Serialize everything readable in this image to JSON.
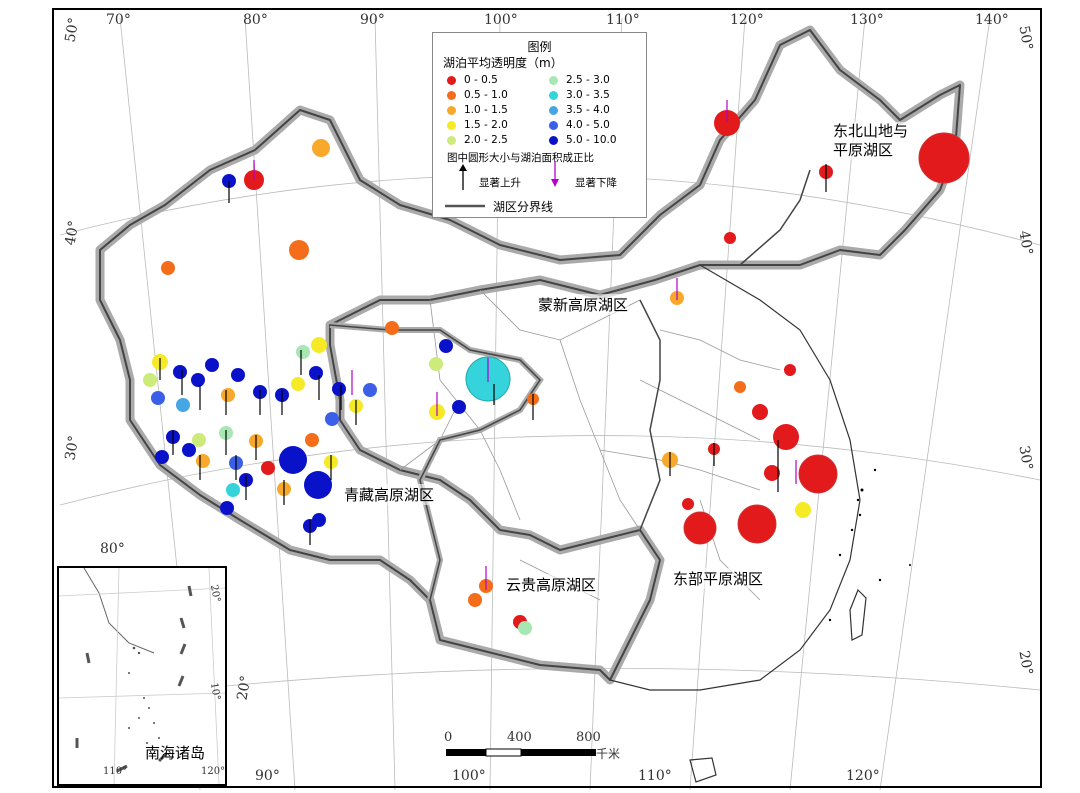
{
  "map": {
    "graticule_labels": {
      "top": [
        "70°",
        "80°",
        "90°",
        "100°",
        "110°",
        "120°",
        "130°",
        "140°"
      ],
      "bottom": [
        "90°",
        "100°",
        "110°",
        "120°"
      ],
      "left": [
        "50°",
        "40°",
        "30°",
        "20°",
        "80°"
      ],
      "right": [
        "50°",
        "40°",
        "30°",
        "20°"
      ]
    },
    "regions": {
      "northeast": "东北山地与\n平原湖区",
      "mengxin": "蒙新高原湖区",
      "qingzang": "青藏高原湖区",
      "yungui": "云贵高原湖区",
      "east": "东部平原湖区"
    },
    "inset_label": "南海诸岛",
    "inset_ticks": {
      "bottom": [
        "110°",
        "120°"
      ],
      "right": [
        "20°",
        "10°"
      ]
    },
    "scale": {
      "labels": [
        "0",
        "400",
        "800"
      ],
      "unit": "千米"
    }
  },
  "legend": {
    "title": "图例",
    "subtitle": "湖泊平均透明度（m）",
    "classes": [
      {
        "label": "0 - 0.5",
        "color": "#e31a1c"
      },
      {
        "label": "0.5 - 1.0",
        "color": "#f46d1b"
      },
      {
        "label": "1.0 - 1.5",
        "color": "#f8a82b"
      },
      {
        "label": "1.5 - 2.0",
        "color": "#f6ea26"
      },
      {
        "label": "2.0 - 2.5",
        "color": "#cdeb7a"
      },
      {
        "label": "2.5 - 3.0",
        "color": "#a7e7b3"
      },
      {
        "label": "3.0 - 3.5",
        "color": "#35d4dc"
      },
      {
        "label": "3.5 - 4.0",
        "color": "#46a6e4"
      },
      {
        "label": "4.0 - 5.0",
        "color": "#3b5fe6"
      },
      {
        "label": "5.0 - 10.0",
        "color": "#0a12c9"
      }
    ],
    "note": "图中圆形大小与湖泊面积成正比",
    "rise": "显著上升",
    "fall": "显著下降",
    "boundary": "湖区分界线",
    "colors": {
      "rise": "#000000",
      "fall": "#b400c8",
      "boundary": "#555555"
    }
  },
  "lakes": [
    {
      "c": 0,
      "r": 1,
      "t": null
    },
    {
      "c": 0,
      "r": 1,
      "t": "down"
    },
    {
      "c": 0,
      "r": 3,
      "t": null
    },
    {
      "c": 0,
      "r": 2,
      "t": "up"
    },
    {
      "c": 0,
      "r": 1,
      "t": null
    },
    {
      "c": 1,
      "r": 2,
      "t": null
    },
    {
      "c": 1,
      "r": 1,
      "t": null
    },
    {
      "c": 2,
      "r": 2,
      "t": null
    },
    {
      "c": 9,
      "r": 1,
      "t": "up"
    },
    {
      "c": 0,
      "r": 1,
      "t": "down"
    },
    {
      "c": 0,
      "r": 2,
      "t": null
    },
    {
      "c": 1,
      "r": 1,
      "t": "down"
    },
    {
      "c": 6,
      "r": 3,
      "t": "down"
    },
    {
      "c": 0,
      "r": 3,
      "t": null
    },
    {
      "c": 0,
      "r": 3,
      "t": null
    },
    {
      "c": 9,
      "r": 2,
      "t": "up"
    }
  ]
}
